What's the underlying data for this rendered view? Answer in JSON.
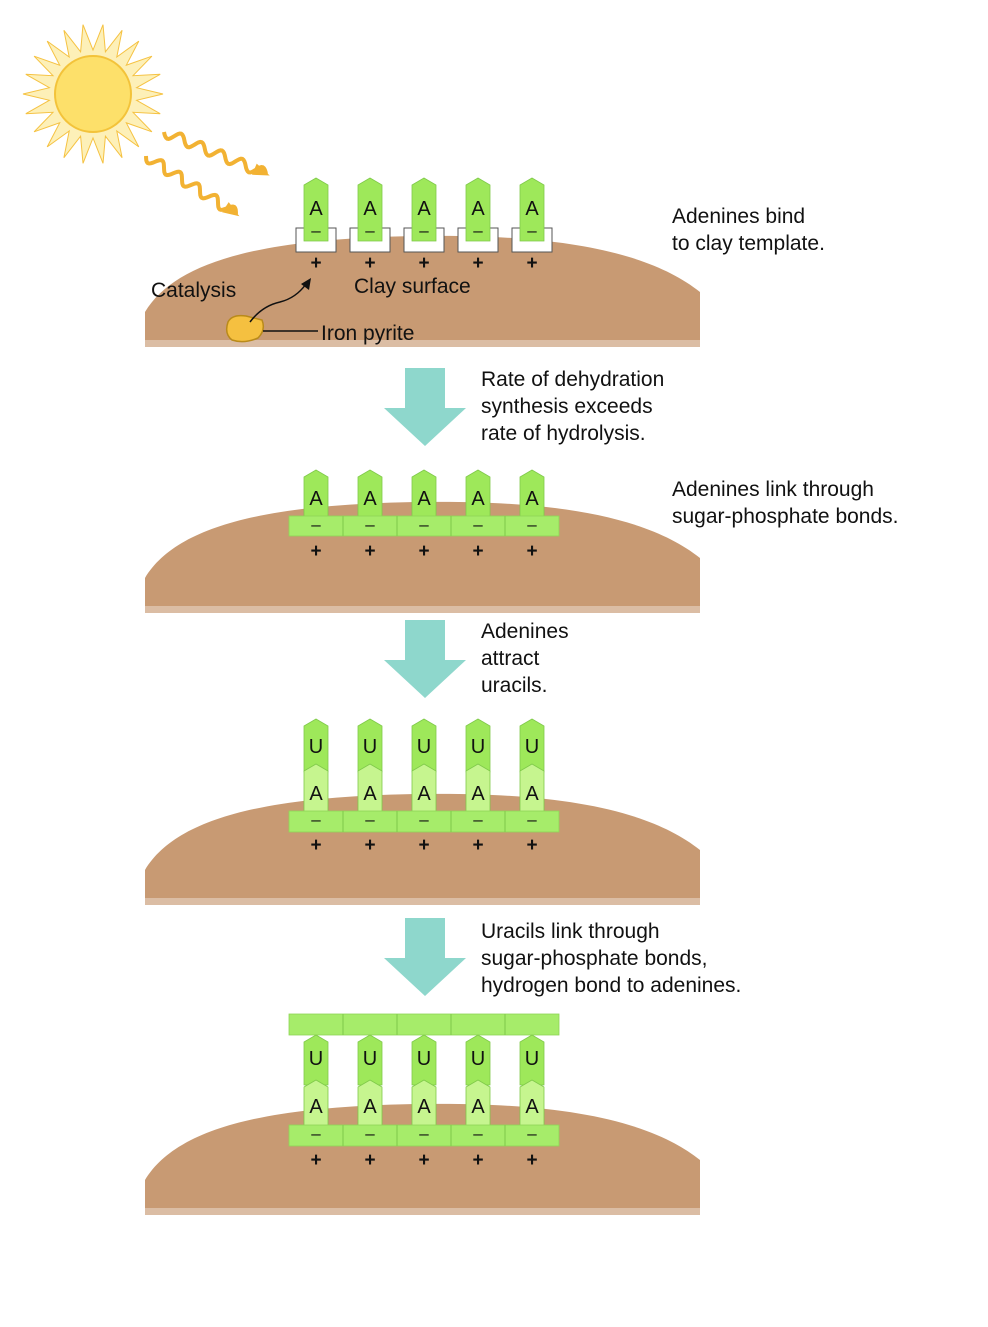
{
  "labels": {
    "catalysis": "Catalysis",
    "clay_surface": "Clay surface",
    "iron_pyrite": "Iron pyrite"
  },
  "letters": {
    "adenine": "A",
    "uracil": "U",
    "minus": "–",
    "plus": "+"
  },
  "stages": [
    {
      "caption": [
        "Adenines bind",
        "to clay template."
      ]
    },
    {
      "caption": [
        "Adenines link through",
        "sugar-phosphate bonds."
      ]
    },
    {
      "caption": []
    },
    {
      "caption": []
    }
  ],
  "transitions": [
    {
      "caption": [
        "Rate of dehydration",
        "synthesis exceeds",
        "rate of hydrolysis."
      ]
    },
    {
      "caption": [
        "Adenines",
        "attract",
        "uracils."
      ]
    },
    {
      "caption": [
        "Uracils link through",
        "sugar-phosphate bonds,",
        "hydrogen bond to adenines."
      ]
    }
  ],
  "colors": {
    "sun": "#fde06a",
    "sun_ray": "#f5c242",
    "wave": "#f2b233",
    "clay": "#c89a73",
    "nucleotide": "#9ee85a",
    "nucleotide_light": "#c6f58f",
    "backbone": "#a6ec6a",
    "arrow": "#8ed7cc",
    "pyrite": "#f5c040"
  }
}
